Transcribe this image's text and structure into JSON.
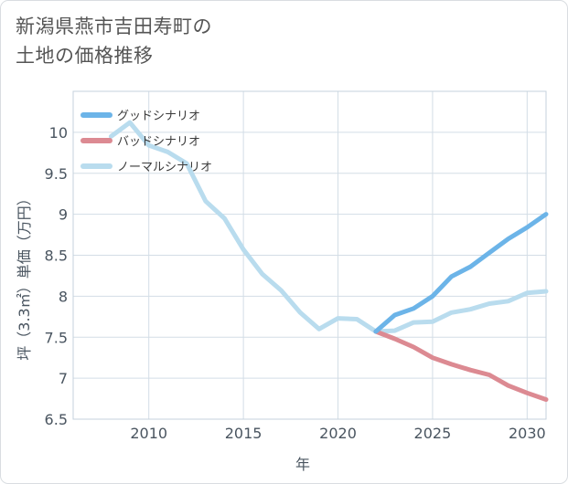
{
  "title_lines": [
    "新潟県燕市吉田寿町の",
    "土地の価格推移"
  ],
  "chart_data": {
    "type": "line",
    "xlabel": "年",
    "ylabel": "坪（3.3㎡）単価（万円）",
    "xlim": [
      2006,
      2031
    ],
    "ylim": [
      6.5,
      10.5
    ],
    "x_ticks": [
      2010,
      2015,
      2020,
      2025,
      2030
    ],
    "y_ticks": [
      6.5,
      7,
      7.5,
      8,
      8.5,
      9,
      9.5,
      10
    ],
    "x_tick_labels": [
      "2010",
      "2015",
      "2020",
      "2025",
      "2030"
    ],
    "y_tick_labels": [
      "6.5",
      "7",
      "7.5",
      "8",
      "8.5",
      "9",
      "9.5",
      "10"
    ],
    "grid": true,
    "legend_position": "top-left",
    "series": [
      {
        "name": "グッドシナリオ",
        "color": "#6cb4e8",
        "x": [
          2022,
          2023,
          2024,
          2025,
          2026,
          2027,
          2028,
          2029,
          2030,
          2031
        ],
        "values": [
          7.57,
          7.77,
          7.85,
          8.0,
          8.24,
          8.36,
          8.53,
          8.7,
          8.84,
          9.0
        ]
      },
      {
        "name": "バッドシナリオ",
        "color": "#dc8a92",
        "x": [
          2022,
          2023,
          2024,
          2025,
          2026,
          2027,
          2028,
          2029,
          2030,
          2031
        ],
        "values": [
          7.57,
          7.48,
          7.38,
          7.25,
          7.17,
          7.1,
          7.04,
          6.91,
          6.82,
          6.74
        ]
      },
      {
        "name": "ノーマルシナリオ",
        "color": "#b9dcee",
        "x": [
          2008,
          2009,
          2010,
          2011,
          2012,
          2013,
          2014,
          2015,
          2016,
          2017,
          2018,
          2019,
          2020,
          2021,
          2022,
          2023,
          2024,
          2025,
          2026,
          2027,
          2028,
          2029,
          2030,
          2031
        ],
        "values": [
          9.95,
          10.12,
          9.84,
          9.76,
          9.62,
          9.16,
          8.95,
          8.57,
          8.27,
          8.07,
          7.8,
          7.6,
          7.73,
          7.72,
          7.57,
          7.58,
          7.68,
          7.69,
          7.8,
          7.84,
          7.91,
          7.94,
          8.04,
          8.06
        ]
      }
    ]
  }
}
